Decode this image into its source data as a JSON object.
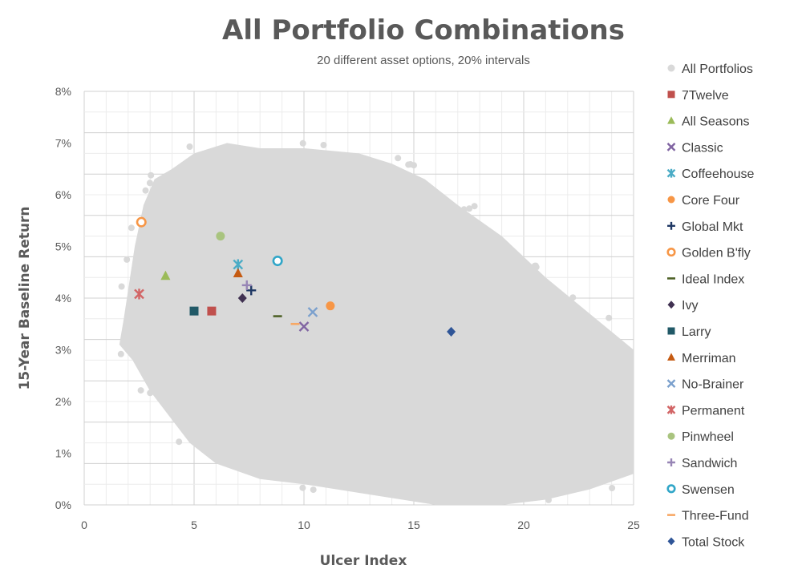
{
  "chart_data": {
    "type": "scatter",
    "title": "All Portfolio Combinations",
    "subtitle": "20 different asset options, 20% intervals",
    "xlabel": "Ulcer Index",
    "ylabel": "15-Year Baseline Return",
    "xlim": [
      0,
      25
    ],
    "ylim": [
      0,
      0.08
    ],
    "x_ticks": [
      "0",
      "5",
      "10",
      "15",
      "20",
      "25"
    ],
    "y_ticks": [
      "0%",
      "1%",
      "2%",
      "3%",
      "4%",
      "5%",
      "6%",
      "7%",
      "8%"
    ],
    "grid": true,
    "legend_position": "right",
    "background_series": {
      "name": "All Portfolios",
      "color": "#d9d9d9",
      "envelope_points": [
        [
          1.6,
          0.031
        ],
        [
          1.8,
          0.036
        ],
        [
          2.3,
          0.05
        ],
        [
          2.7,
          0.058
        ],
        [
          3.2,
          0.063
        ],
        [
          4.0,
          0.065
        ],
        [
          5.0,
          0.068
        ],
        [
          6.5,
          0.07
        ],
        [
          8.0,
          0.069
        ],
        [
          10.0,
          0.069
        ],
        [
          12.5,
          0.068
        ],
        [
          14.0,
          0.066
        ],
        [
          15.5,
          0.063
        ],
        [
          17.0,
          0.058
        ],
        [
          19.0,
          0.052
        ],
        [
          21.0,
          0.044
        ],
        [
          23.0,
          0.037
        ],
        [
          25.0,
          0.03
        ],
        [
          25.0,
          0.006
        ],
        [
          23.0,
          0.003
        ],
        [
          21.0,
          0.001
        ],
        [
          19.0,
          0.0
        ],
        [
          16.0,
          0.0
        ],
        [
          13.0,
          0.002
        ],
        [
          10.0,
          0.004
        ],
        [
          8.0,
          0.005
        ],
        [
          6.0,
          0.008
        ],
        [
          4.8,
          0.012
        ],
        [
          3.9,
          0.017
        ],
        [
          3.0,
          0.022
        ],
        [
          2.2,
          0.028
        ]
      ]
    },
    "series": [
      {
        "name": "7Twelve",
        "marker": "square",
        "color": "#c0504d",
        "x": 5.8,
        "y": 0.0375
      },
      {
        "name": "All Seasons",
        "marker": "triangle",
        "color": "#9bbb59",
        "x": 3.7,
        "y": 0.0443
      },
      {
        "name": "Classic",
        "marker": "x",
        "color": "#8064a2",
        "x": 10.0,
        "y": 0.0345
      },
      {
        "name": "Coffeehouse",
        "marker": "star",
        "color": "#4bacc6",
        "x": 7.0,
        "y": 0.0465
      },
      {
        "name": "Core Four",
        "marker": "circle",
        "color": "#f79646",
        "x": 11.2,
        "y": 0.0385
      },
      {
        "name": "Global Mkt",
        "marker": "plus",
        "color": "#1f3864",
        "x": 7.6,
        "y": 0.0415
      },
      {
        "name": "Golden B'fly",
        "marker": "circle-open",
        "color": "#f79646",
        "x": 2.6,
        "y": 0.0547
      },
      {
        "name": "Ideal Index",
        "marker": "dash",
        "color": "#4f6228",
        "x": 8.8,
        "y": 0.0365
      },
      {
        "name": "Ivy",
        "marker": "diamond",
        "color": "#403151",
        "x": 7.2,
        "y": 0.04
      },
      {
        "name": "Larry",
        "marker": "square",
        "color": "#215967",
        "x": 5.0,
        "y": 0.0375
      },
      {
        "name": "Merriman",
        "marker": "triangle",
        "color": "#c55a11",
        "x": 7.0,
        "y": 0.0448
      },
      {
        "name": "No-Brainer",
        "marker": "x",
        "color": "#7ba0cd",
        "x": 10.4,
        "y": 0.0373
      },
      {
        "name": "Permanent",
        "marker": "star",
        "color": "#d26566",
        "x": 2.5,
        "y": 0.0408
      },
      {
        "name": "Pinwheel",
        "marker": "circle",
        "color": "#a9c47f",
        "x": 6.2,
        "y": 0.052
      },
      {
        "name": "Sandwich",
        "marker": "plus",
        "color": "#9785b5",
        "x": 7.4,
        "y": 0.0425
      },
      {
        "name": "Swensen",
        "marker": "circle-open",
        "color": "#31a6c8",
        "x": 8.8,
        "y": 0.0472
      },
      {
        "name": "Three-Fund",
        "marker": "dash",
        "color": "#f7a865",
        "x": 9.6,
        "y": 0.035
      },
      {
        "name": "Total Stock",
        "marker": "diamond",
        "color": "#2f5597",
        "x": 16.7,
        "y": 0.0335
      }
    ]
  }
}
